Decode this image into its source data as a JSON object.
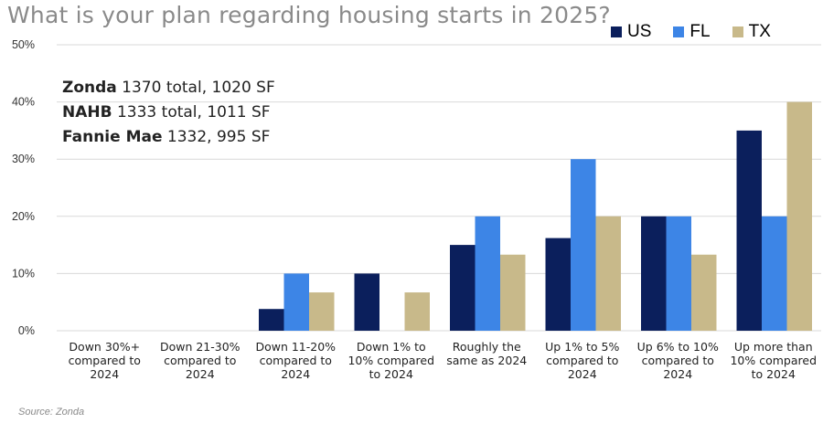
{
  "chart_data": {
    "type": "bar",
    "title": "What is your plan regarding housing starts in 2025?",
    "categories": [
      [
        "Down 30%+",
        "compared to",
        "2024"
      ],
      [
        "Down 21-30%",
        "compared to",
        "2024"
      ],
      [
        "Down 11-20%",
        "compared to",
        "2024"
      ],
      [
        "Down 1% to",
        "10% compared",
        "to 2024"
      ],
      [
        "Roughly the",
        "same as 2024"
      ],
      [
        "Up 1% to 5%",
        "compared to",
        "2024"
      ],
      [
        "Up 6% to 10%",
        "compared to",
        "2024"
      ],
      [
        "Up more than",
        "10% compared",
        "to 2024"
      ]
    ],
    "series": [
      {
        "name": "US",
        "color": "#0b1f5c",
        "values": [
          0,
          0,
          3.8,
          10,
          15,
          16.2,
          20,
          35
        ]
      },
      {
        "name": "FL",
        "color": "#3d85e6",
        "values": [
          0,
          0,
          10,
          0,
          20,
          30,
          20,
          20
        ]
      },
      {
        "name": "TX",
        "color": "#c8b98a",
        "values": [
          0,
          0,
          6.7,
          6.7,
          13.3,
          20,
          13.3,
          40
        ]
      }
    ],
    "yticks": [
      "0%",
      "10%",
      "20%",
      "30%",
      "40%",
      "50%"
    ],
    "ylim": [
      0,
      50
    ],
    "grid": true,
    "legend": "top-right"
  },
  "annotations": [
    {
      "bold": "Zonda",
      "text": " 1370 total, 1020 SF"
    },
    {
      "bold": "NAHB",
      "text": " 1333 total, 1011 SF"
    },
    {
      "bold": "Fannie Mae",
      "text": " 1332, 995 SF"
    }
  ],
  "source": "Source: Zonda"
}
